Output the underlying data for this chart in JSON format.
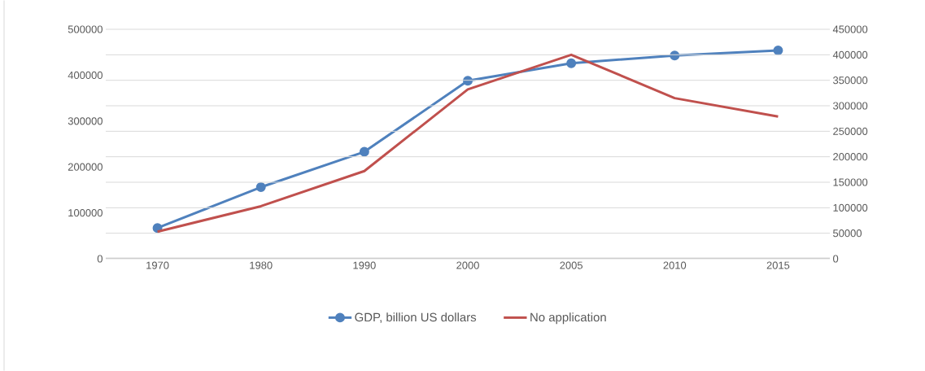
{
  "chart_data": {
    "type": "line",
    "categories": [
      "1970",
      "1980",
      "1990",
      "2000",
      "2005",
      "2010",
      "2015"
    ],
    "series": [
      {
        "name": "GDP, billion US dollars",
        "color": "#4f81bd",
        "marker": "circle",
        "values": [
          67000,
          156000,
          233000,
          388000,
          426000,
          443000,
          454000
        ]
      },
      {
        "name": "No application",
        "color": "#c0504d",
        "marker": "none",
        "axis": "y2",
        "values": [
          53000,
          103000,
          172000,
          332000,
          400000,
          315000,
          279000
        ]
      }
    ],
    "ylim": [
      0,
      500000
    ],
    "yticks": [
      0,
      100000,
      200000,
      300000,
      400000,
      500000
    ],
    "y2lim": [
      0,
      450000
    ],
    "y2ticks": [
      0,
      50000,
      100000,
      150000,
      200000,
      250000,
      300000,
      350000,
      400000,
      450000
    ],
    "grid": "y",
    "legend": "bottom"
  }
}
